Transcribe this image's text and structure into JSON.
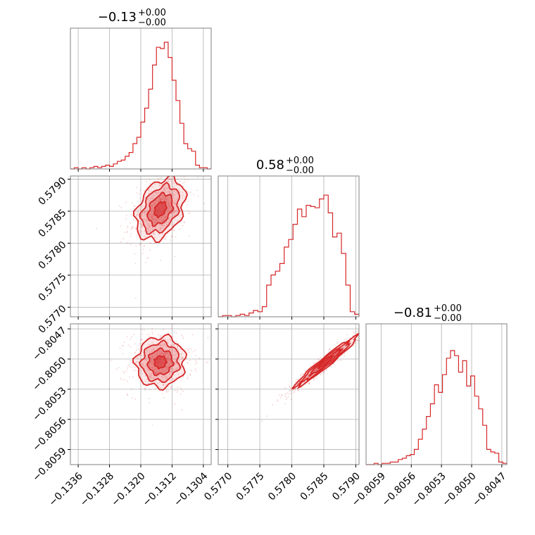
{
  "chart_data": {
    "type": "corner",
    "color": "#d62728",
    "grid": true,
    "parameters": [
      {
        "title": {
          "base": "−0.13",
          "sup": "+0.00",
          "sub": "−0.00"
        },
        "range": [
          -0.1338,
          -0.1302
        ],
        "ticks": [
          -0.1336,
          -0.1328,
          -0.132,
          -0.1312,
          -0.1304
        ],
        "tick_labels": [
          "−0.1336",
          "−0.1328",
          "−0.1320",
          "−0.1312",
          "−0.1304"
        ],
        "mean": -0.1315,
        "std": 0.0003,
        "hist": [
          0.0,
          0.01,
          0.0,
          0.01,
          0.0,
          0.01,
          0.02,
          0.01,
          0.02,
          0.03,
          0.02,
          0.04,
          0.06,
          0.07,
          0.1,
          0.13,
          0.2,
          0.25,
          0.37,
          0.48,
          0.63,
          0.82,
          0.96,
          0.95,
          1.0,
          0.88,
          0.7,
          0.54,
          0.36,
          0.2,
          0.16,
          0.14,
          0.03,
          0.01,
          0.01,
          0.0
        ]
      },
      {
        "title": {
          "base": "0.58",
          "sup": "+0.00",
          "sub": "−0.00"
        },
        "range": [
          0.57685,
          0.57905
        ],
        "ticks": [
          0.577,
          0.5775,
          0.578,
          0.5785,
          0.579
        ],
        "tick_labels": [
          "0.5770",
          "0.5775",
          "0.5780",
          "0.5785",
          "0.5790"
        ],
        "mean": 0.57853,
        "std": 0.00023,
        "hist": [
          0.0,
          0.01,
          0.01,
          0.0,
          0.01,
          0.02,
          0.01,
          0.03,
          0.05,
          0.04,
          0.08,
          0.25,
          0.33,
          0.36,
          0.42,
          0.55,
          0.61,
          0.73,
          0.85,
          0.79,
          0.88,
          0.87,
          0.86,
          0.93,
          0.96,
          0.82,
          0.63,
          0.66,
          0.5,
          0.25,
          0.04,
          0.02
        ]
      },
      {
        "title": {
          "base": "−0.81",
          "sup": "+0.00",
          "sub": "−0.00"
        },
        "range": [
          -0.80605,
          -0.80465
        ],
        "ticks": [
          -0.8059,
          -0.8056,
          -0.8053,
          -0.805,
          -0.8047
        ],
        "tick_labels": [
          "−0.8059",
          "−0.8056",
          "−0.8053",
          "−0.8050",
          "−0.8047"
        ],
        "mean": -0.80503,
        "std": 0.00012,
        "hist": [
          0.0,
          0.0,
          0.01,
          0.0,
          0.01,
          0.01,
          0.02,
          0.02,
          0.04,
          0.05,
          0.07,
          0.08,
          0.12,
          0.2,
          0.28,
          0.38,
          0.48,
          0.63,
          0.57,
          0.71,
          0.84,
          0.9,
          0.86,
          0.73,
          0.82,
          0.62,
          0.7,
          0.54,
          0.44,
          0.31,
          0.12,
          0.1,
          0.09,
          0.02,
          0.01
        ]
      }
    ],
    "correlations": [
      {
        "x": 0,
        "y": 1,
        "rho": 0.35
      },
      {
        "x": 0,
        "y": 2,
        "rho": 0.05
      },
      {
        "x": 1,
        "y": 2,
        "rho": 0.97
      }
    ]
  }
}
